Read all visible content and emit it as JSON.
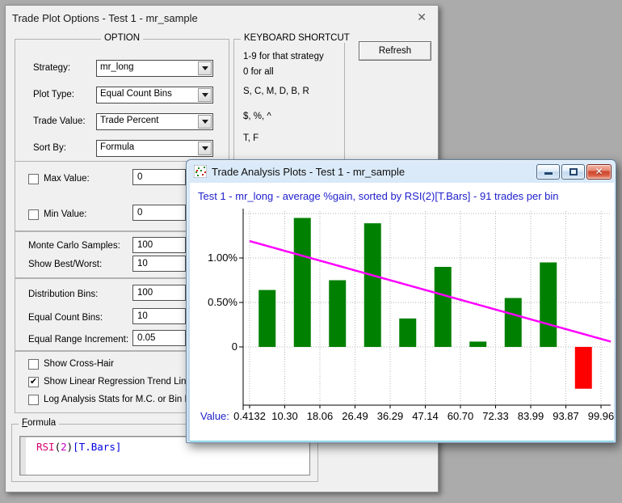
{
  "options_dialog": {
    "title": "Trade Plot Options - Test 1 - mr_sample",
    "close_icon": "✕",
    "option_group": {
      "label": "OPTION",
      "rows": [
        {
          "label": "Strategy:",
          "value": "mr_long"
        },
        {
          "label": "Plot Type:",
          "value": "Equal Count Bins"
        },
        {
          "label": "Trade Value:",
          "value": "Trade Percent"
        },
        {
          "label": "Sort By:",
          "value": "Formula"
        }
      ]
    },
    "keyboard_group": {
      "label": "KEYBOARD SHORTCUT",
      "lines": [
        "1-9 for that strategy",
        "0 for all",
        "S, C, M, D, B, R",
        "$, %, ^",
        "T, F"
      ]
    },
    "refresh_label": "Refresh",
    "value_checks": [
      {
        "label": "Max Value:",
        "value": "0",
        "mark": ""
      },
      {
        "label": "Min Value:",
        "value": "0",
        "mark": ""
      }
    ],
    "numeric_rows": [
      {
        "label": "Monte Carlo Samples:",
        "value": "100"
      },
      {
        "label": "Show Best/Worst:",
        "value": "10"
      },
      {
        "label": "Distribution Bins:",
        "value": "100"
      },
      {
        "label": "Equal Count Bins:",
        "value": "10"
      },
      {
        "label": "Equal Range Increment:",
        "value": "0.05"
      }
    ],
    "toggle_rows": [
      {
        "label": "Show Cross-Hair",
        "mark": ""
      },
      {
        "label": "Show Linear Regression Trend Line",
        "mark": "✔"
      },
      {
        "label": "Log Analysis Stats for M.C. or Bin Plot",
        "mark": ""
      }
    ],
    "formula_group": {
      "label_accel": "F",
      "label_rest": "ormula",
      "tokens": [
        {
          "text": "RSI",
          "color": "#d6006e"
        },
        {
          "text": "(",
          "color": "#000000"
        },
        {
          "text": "2",
          "color": "#cc00cc"
        },
        {
          "text": ")",
          "color": "#000000"
        },
        {
          "text": "[T.Bars]",
          "color": "#0000e0"
        }
      ]
    }
  },
  "plot_window": {
    "title": "Trade Analysis Plots - Test 1 - mr_sample",
    "close_glyph": "✕",
    "controls": [
      "minimize",
      "maximize",
      "close"
    ]
  },
  "chart_data": {
    "type": "bar",
    "title": "Test 1 - mr_long - average %gain, sorted by RSI(2)[T.Bars] - 91 trades per bin",
    "title_color": "#2020cc",
    "x_axis_prefix": "Value:",
    "x_axis_prefix_color": "#2020cc",
    "bin_edges": [
      "0.4132",
      "10.30",
      "18.06",
      "26.49",
      "36.29",
      "47.14",
      "60.70",
      "72.33",
      "83.99",
      "93.87",
      "99.96"
    ],
    "values_pct": [
      0.64,
      1.45,
      0.75,
      1.39,
      0.32,
      0.9,
      0.06,
      0.55,
      0.95,
      -0.47
    ],
    "positive_color": "#008000",
    "negative_color": "#ff0000",
    "y_ticks": [
      {
        "label": "1.00%",
        "value": 1.0
      },
      {
        "label": "0.50%",
        "value": 0.5
      },
      {
        "label": "0",
        "value": 0.0
      }
    ],
    "h_gridlines": [
      1.5,
      1.0,
      0.5,
      0.0
    ],
    "grid_color": "#b4b4b4",
    "axis_color": "#000000",
    "ylim": [
      -0.65,
      1.57
    ],
    "grid": true,
    "trend_line": {
      "show": true,
      "color": "#ff00ff",
      "start_pct": 1.19,
      "end_pct": 0.06
    }
  }
}
